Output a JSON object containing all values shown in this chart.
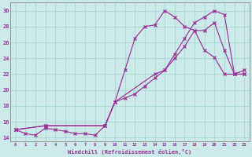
{
  "xlabel": "Windchill (Refroidissement éolien,°C)",
  "bg_color": "#cceaea",
  "grid_color": "#aad8d8",
  "line_color": "#993399",
  "xlim": [
    -0.5,
    23.5
  ],
  "ylim": [
    13.5,
    31.0
  ],
  "xticks": [
    0,
    1,
    2,
    3,
    4,
    5,
    6,
    7,
    8,
    9,
    10,
    11,
    12,
    13,
    14,
    15,
    16,
    17,
    18,
    19,
    20,
    21,
    22,
    23
  ],
  "yticks": [
    14,
    16,
    18,
    20,
    22,
    24,
    26,
    28,
    30
  ],
  "line1_x": [
    0,
    1,
    2,
    3,
    4,
    5,
    6,
    7,
    8,
    9,
    10,
    11,
    12,
    13,
    14,
    15,
    16,
    17,
    18,
    19,
    20,
    21,
    22,
    23
  ],
  "line1_y": [
    15.0,
    14.5,
    14.3,
    15.2,
    15.0,
    14.8,
    14.5,
    14.5,
    14.3,
    15.5,
    18.5,
    22.5,
    26.5,
    28.0,
    28.2,
    30.0,
    29.2,
    28.0,
    27.5,
    25.0,
    24.1,
    22.0,
    22.0,
    22.5
  ],
  "line2_x": [
    0,
    3,
    9,
    10,
    11,
    12,
    13,
    14,
    15,
    16,
    17,
    18,
    19,
    20,
    21,
    22,
    23
  ],
  "line2_y": [
    15.0,
    15.5,
    15.5,
    18.5,
    19.0,
    19.5,
    20.5,
    21.5,
    22.5,
    24.5,
    26.5,
    28.5,
    29.2,
    30.0,
    29.5,
    22.0,
    22.0
  ],
  "line3_x": [
    0,
    3,
    9,
    10,
    14,
    15,
    16,
    17,
    18,
    19,
    20,
    21,
    22,
    23
  ],
  "line3_y": [
    15.0,
    15.5,
    15.5,
    18.5,
    22.0,
    22.5,
    24.0,
    25.5,
    27.5,
    27.5,
    28.5,
    25.0,
    22.0,
    22.0
  ]
}
